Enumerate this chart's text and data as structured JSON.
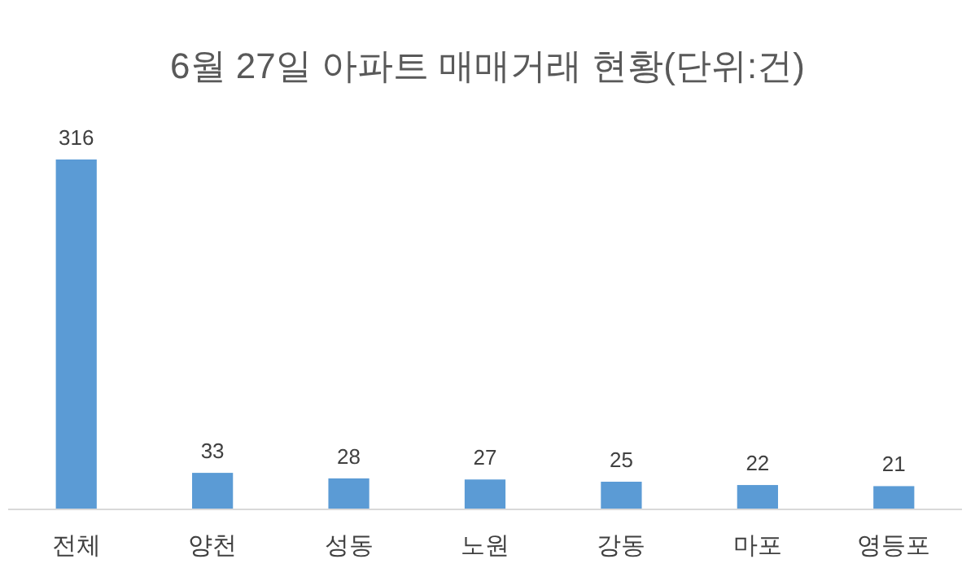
{
  "chart_data": {
    "type": "bar",
    "title": "6월 27일 아파트 매매거래 현황(단위:건)",
    "categories": [
      "전체",
      "양천",
      "성동",
      "노원",
      "강동",
      "마포",
      "영등포"
    ],
    "values": [
      316,
      33,
      28,
      27,
      25,
      22,
      21
    ],
    "color": "#5b9bd5",
    "data_labels": true
  }
}
